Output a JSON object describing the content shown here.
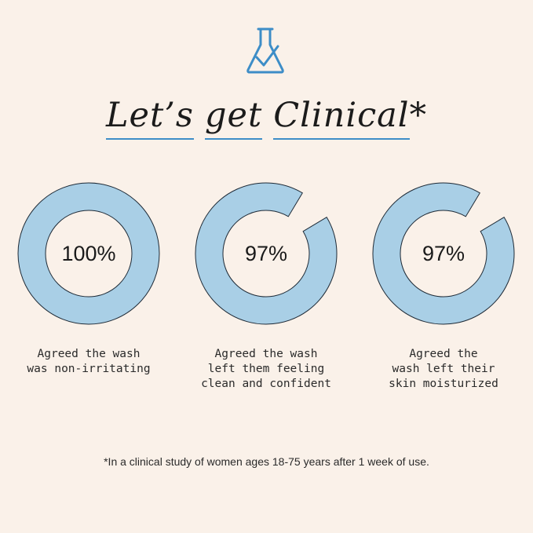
{
  "header": {
    "icon": "flask-check-icon",
    "title_words": [
      "Let’s",
      "get",
      "Clinical"
    ],
    "title_suffix": "*"
  },
  "stats": [
    {
      "value": "100%",
      "percent": 100,
      "caption": "Agreed the wash\nwas non-irritating"
    },
    {
      "value": "97%",
      "percent": 97,
      "caption": "Agreed the wash\nleft them feeling\nclean and confident"
    },
    {
      "value": "97%",
      "percent": 97,
      "caption": "Agreed the\nwash left their\nskin moisturized"
    }
  ],
  "footnote": "*In a clinical study of women ages 18-75 years after 1 week of use.",
  "colors": {
    "background": "#faf1e9",
    "ring_fill": "#a9cfe6",
    "ring_stroke": "#1e2a36",
    "accent": "#3d8dc7"
  }
}
